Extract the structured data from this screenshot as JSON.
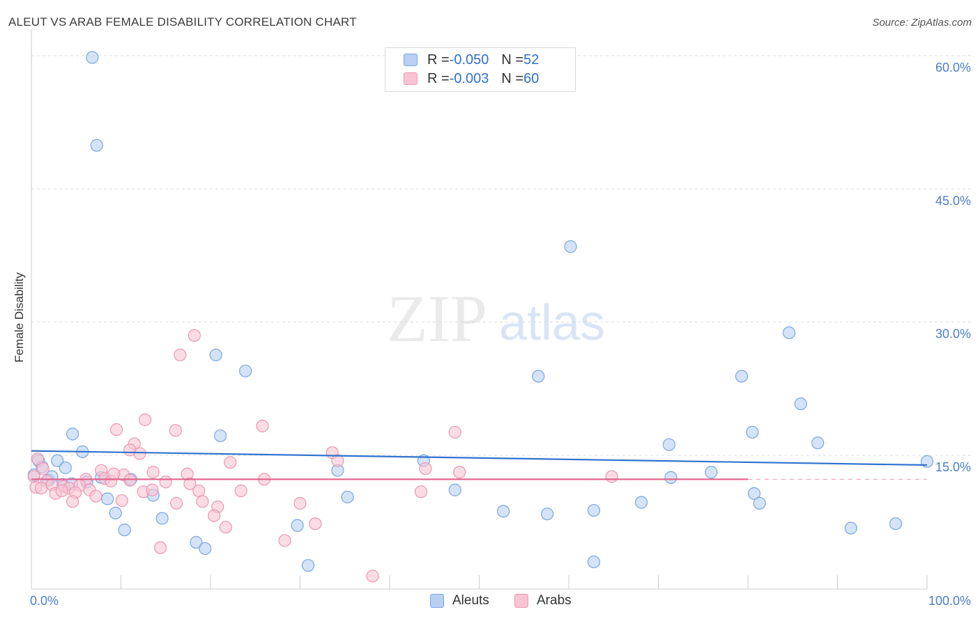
{
  "title": "ALEUT VS ARAB FEMALE DISABILITY CORRELATION CHART",
  "source": "Source: ZipAtlas.com",
  "watermark": {
    "zip": "ZIP",
    "atlas": "atlas"
  },
  "colors": {
    "aleut_fill": "#b8d0f2",
    "aleut_stroke": "#7aa6e0",
    "aleut_line": "#2f72cf",
    "arab_fill": "#f8c4d4",
    "arab_stroke": "#ec97b2",
    "arab_line": "#e0608a",
    "grid": "#dddddd",
    "tick_text": "#4a7fd0"
  },
  "legend": {
    "rows": [
      {
        "r_label": "R = ",
        "r_value": "-0.050",
        "n_label": "N = ",
        "n_value": "52",
        "series": "aleut"
      },
      {
        "r_label": "R = ",
        "r_value": "-0.003",
        "n_label": "N = ",
        "n_value": "60",
        "series": "arab"
      }
    ]
  },
  "bottom_legend": {
    "aleut": "Aleuts",
    "arab": "Arabs"
  },
  "chart_data": {
    "type": "scatter",
    "title": "ALEUT VS ARAB FEMALE DISABILITY CORRELATION CHART",
    "xlabel": "",
    "ylabel": "Female Disability",
    "xlim": [
      0,
      100
    ],
    "ylim": [
      0,
      63
    ],
    "x_tick_labels": {
      "left": "0.0%",
      "right": "100.0%"
    },
    "y_ticks": [
      {
        "value": 15,
        "label": "15.0%"
      },
      {
        "value": 30,
        "label": "30.0%"
      },
      {
        "value": 45,
        "label": "45.0%"
      },
      {
        "value": 60,
        "label": "60.0%"
      }
    ],
    "grid": true,
    "legend_position": "top-center",
    "series": [
      {
        "name": "Aleuts",
        "key": "aleut",
        "trend": {
          "x": [
            0,
            100
          ],
          "y": [
            15.5,
            13.9
          ]
        },
        "points": [
          [
            6.8,
            59.8
          ],
          [
            7.3,
            49.9
          ],
          [
            60.2,
            38.5
          ],
          [
            84.6,
            28.8
          ],
          [
            20.6,
            26.3
          ],
          [
            23.9,
            24.5
          ],
          [
            56.6,
            23.9
          ],
          [
            79.3,
            23.9
          ],
          [
            85.9,
            20.8
          ],
          [
            4.6,
            17.4
          ],
          [
            21.1,
            17.2
          ],
          [
            80.5,
            17.6
          ],
          [
            71.2,
            16.2
          ],
          [
            87.8,
            16.4
          ],
          [
            5.7,
            15.4
          ],
          [
            0.8,
            14.4
          ],
          [
            2.9,
            14.4
          ],
          [
            43.8,
            14.4
          ],
          [
            1.2,
            13.7
          ],
          [
            3.8,
            13.6
          ],
          [
            100.0,
            14.3
          ],
          [
            34.2,
            13.3
          ],
          [
            75.9,
            13.1
          ],
          [
            0.3,
            12.8
          ],
          [
            1.9,
            12.2
          ],
          [
            2.3,
            12.6
          ],
          [
            7.8,
            12.5
          ],
          [
            11.1,
            12.3
          ],
          [
            71.4,
            12.5
          ],
          [
            3.5,
            11.7
          ],
          [
            4.5,
            11.8
          ],
          [
            6.2,
            12.0
          ],
          [
            47.3,
            11.1
          ],
          [
            13.6,
            10.5
          ],
          [
            8.5,
            10.1
          ],
          [
            35.3,
            10.3
          ],
          [
            80.7,
            10.7
          ],
          [
            81.3,
            9.6
          ],
          [
            68.1,
            9.7
          ],
          [
            9.4,
            8.5
          ],
          [
            14.6,
            7.9
          ],
          [
            52.7,
            8.7
          ],
          [
            57.6,
            8.4
          ],
          [
            62.8,
            8.8
          ],
          [
            10.4,
            6.6
          ],
          [
            29.7,
            7.1
          ],
          [
            91.5,
            6.8
          ],
          [
            96.5,
            7.3
          ],
          [
            18.4,
            5.2
          ],
          [
            19.4,
            4.5
          ],
          [
            30.9,
            2.6
          ],
          [
            62.8,
            3.0
          ]
        ]
      },
      {
        "name": "Arabs",
        "key": "arab",
        "trend": {
          "x": [
            0,
            80
          ],
          "y": [
            12.3,
            12.3
          ]
        },
        "points": [
          [
            18.2,
            28.5
          ],
          [
            16.6,
            26.3
          ],
          [
            12.7,
            19.0
          ],
          [
            9.5,
            17.9
          ],
          [
            16.1,
            17.8
          ],
          [
            25.8,
            18.3
          ],
          [
            47.3,
            17.6
          ],
          [
            11.5,
            16.3
          ],
          [
            12.1,
            15.2
          ],
          [
            11.0,
            15.6
          ],
          [
            33.6,
            15.3
          ],
          [
            34.2,
            14.4
          ],
          [
            22.2,
            14.2
          ],
          [
            0.7,
            14.6
          ],
          [
            1.3,
            13.5
          ],
          [
            7.8,
            13.3
          ],
          [
            13.6,
            13.1
          ],
          [
            44.0,
            13.5
          ],
          [
            47.8,
            13.1
          ],
          [
            64.8,
            12.6
          ],
          [
            0.3,
            12.6
          ],
          [
            1.7,
            12.1
          ],
          [
            2.3,
            11.7
          ],
          [
            6.1,
            12.3
          ],
          [
            8.2,
            12.4
          ],
          [
            8.9,
            12.1
          ],
          [
            10.3,
            12.8
          ],
          [
            11.0,
            12.2
          ],
          [
            17.4,
            12.9
          ],
          [
            17.7,
            11.8
          ],
          [
            0.5,
            11.4
          ],
          [
            1.1,
            11.3
          ],
          [
            3.6,
            11.5
          ],
          [
            4.2,
            11.3
          ],
          [
            5.4,
            11.6
          ],
          [
            6.5,
            11.1
          ],
          [
            2.7,
            10.7
          ],
          [
            3.4,
            11.0
          ],
          [
            4.9,
            10.8
          ],
          [
            7.2,
            10.4
          ],
          [
            12.5,
            10.9
          ],
          [
            13.5,
            11.1
          ],
          [
            18.7,
            11.0
          ],
          [
            23.4,
            11.0
          ],
          [
            43.5,
            10.9
          ],
          [
            4.6,
            9.8
          ],
          [
            10.1,
            9.9
          ],
          [
            16.2,
            9.6
          ],
          [
            19.1,
            9.8
          ],
          [
            20.8,
            9.2
          ],
          [
            30.0,
            9.6
          ],
          [
            20.4,
            8.2
          ],
          [
            21.7,
            6.9
          ],
          [
            31.7,
            7.3
          ],
          [
            28.3,
            5.4
          ],
          [
            14.4,
            4.6
          ],
          [
            38.1,
            1.4
          ],
          [
            9.2,
            12.9
          ],
          [
            15.0,
            12.0
          ],
          [
            26.0,
            12.3
          ]
        ]
      }
    ]
  }
}
